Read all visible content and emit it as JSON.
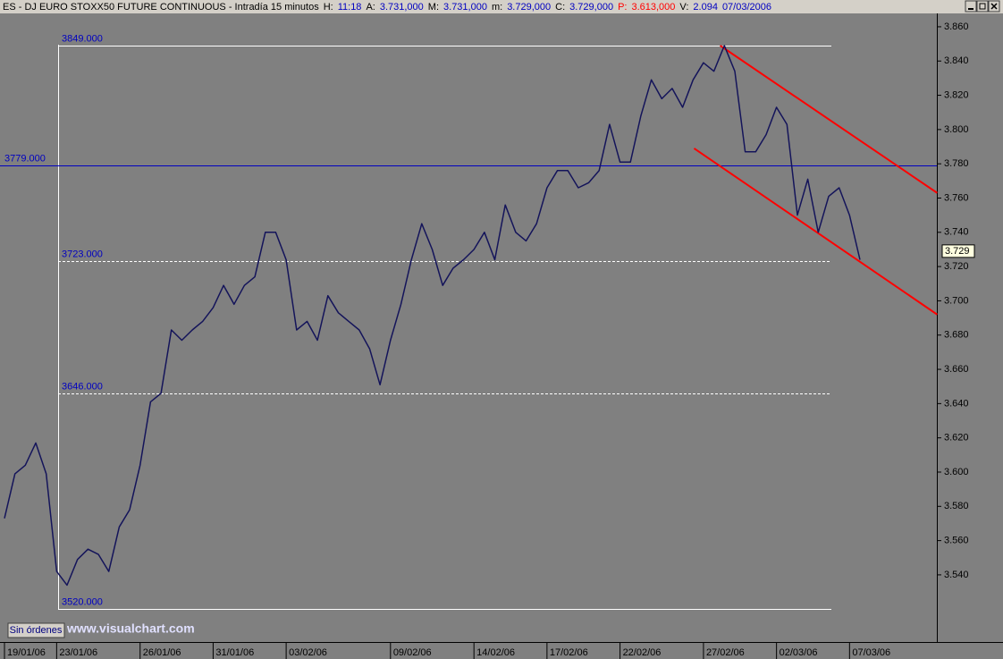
{
  "chart_data": {
    "type": "line",
    "header": [
      {
        "text": "ES - DJ EURO STOXX50 FUTURE CONTINUOUS - Intradía 15 minutos",
        "color": "#000000"
      },
      {
        "text": "H:",
        "color": "#000000"
      },
      {
        "text": "11:18",
        "color": "#0000c0"
      },
      {
        "text": "A:",
        "color": "#000000"
      },
      {
        "text": "3.731,000",
        "color": "#0000c0"
      },
      {
        "text": "M:",
        "color": "#000000"
      },
      {
        "text": "3.731,000",
        "color": "#0000c0"
      },
      {
        "text": "m:",
        "color": "#000000"
      },
      {
        "text": "3.729,000",
        "color": "#0000c0"
      },
      {
        "text": "C:",
        "color": "#000000"
      },
      {
        "text": "3.729,000",
        "color": "#0000c0"
      },
      {
        "text": "P:",
        "color": "#ff0000"
      },
      {
        "text": "3.613,000",
        "color": "#ff0000"
      },
      {
        "text": "V:",
        "color": "#000000"
      },
      {
        "text": "2.094",
        "color": "#0000c0"
      },
      {
        "text": "07/03/2006",
        "color": "#0000c0"
      }
    ],
    "categories": [
      "19/01/06",
      null,
      null,
      null,
      null,
      "23/01/06",
      null,
      null,
      null,
      null,
      null,
      null,
      null,
      "26/01/06",
      null,
      null,
      null,
      null,
      null,
      null,
      "31/01/06",
      null,
      null,
      null,
      null,
      null,
      null,
      "03/02/06",
      null,
      null,
      null,
      null,
      null,
      null,
      null,
      null,
      null,
      "09/02/06",
      null,
      null,
      null,
      null,
      null,
      null,
      null,
      "14/02/06",
      null,
      null,
      null,
      null,
      null,
      null,
      "17/02/06",
      null,
      null,
      null,
      null,
      null,
      null,
      "22/02/06",
      null,
      null,
      null,
      null,
      null,
      null,
      null,
      "27/02/06",
      null,
      null,
      null,
      null,
      null,
      null,
      "02/03/06",
      null,
      null,
      null,
      null,
      null,
      null,
      "07/03/06",
      null
    ],
    "series": [
      {
        "color": "#14145a",
        "values": [
          3.573,
          3.599,
          3.604,
          3.617,
          3.599,
          3.542,
          3.534,
          3.549,
          3.555,
          3.552,
          3.542,
          3.568,
          3.578,
          3.604,
          3.641,
          3.646,
          3.683,
          3.677,
          3.683,
          3.688,
          3.696,
          3.709,
          3.698,
          3.709,
          3.714,
          3.74,
          3.74,
          3.724,
          3.683,
          3.688,
          3.677,
          3.703,
          3.693,
          3.688,
          3.683,
          3.672,
          3.651,
          3.677,
          3.698,
          3.724,
          3.745,
          3.73,
          3.709,
          3.719,
          3.724,
          3.73,
          3.74,
          3.724,
          3.756,
          3.74,
          3.735,
          3.745,
          3.766,
          3.776,
          3.776,
          3.766,
          3.769,
          3.776,
          3.803,
          3.781,
          3.781,
          3.808,
          3.829,
          3.818,
          3.824,
          3.813,
          3.829,
          3.839,
          3.834,
          3.849,
          3.834,
          3.787,
          3.787,
          3.797,
          3.813,
          3.803,
          3.75,
          3.771,
          3.74,
          3.761,
          3.766,
          3.75,
          3.724
        ]
      }
    ],
    "ylim": [
      3.5008,
      3.8678
    ],
    "yticks": [
      {
        "value": 3.54,
        "label": "3.540"
      },
      {
        "value": 3.56,
        "label": "3.560"
      },
      {
        "value": 3.58,
        "label": "3.580"
      },
      {
        "value": 3.6,
        "label": "3.600"
      },
      {
        "value": 3.62,
        "label": "3.620"
      },
      {
        "value": 3.64,
        "label": "3.640"
      },
      {
        "value": 3.66,
        "label": "3.660"
      },
      {
        "value": 3.68,
        "label": "3.680"
      },
      {
        "value": 3.7,
        "label": "3.700"
      },
      {
        "value": 3.72,
        "label": "3.720"
      },
      {
        "value": 3.74,
        "label": "3.740"
      },
      {
        "value": 3.76,
        "label": "3.760"
      },
      {
        "value": 3.78,
        "label": "3.780"
      },
      {
        "value": 3.8,
        "label": "3.800"
      },
      {
        "value": 3.82,
        "label": "3.820"
      },
      {
        "value": 3.84,
        "label": "3.840"
      },
      {
        "value": 3.86,
        "label": "3.860"
      }
    ],
    "levels": [
      {
        "value": 3.849,
        "label": "3849.000",
        "color": "#ffffff",
        "style": "solid"
      },
      {
        "value": 3.779,
        "label": "3779.000",
        "color": "#0000c0",
        "style": "full"
      },
      {
        "value": 3.723,
        "label": "3723.000",
        "color": "#ffffff",
        "style": "dashed"
      },
      {
        "value": 3.646,
        "label": "3646.000",
        "color": "#ffffff",
        "style": "dashed"
      },
      {
        "value": 3.52,
        "label": "3520.000",
        "color": "#ffffff",
        "style": "solid"
      }
    ],
    "trendlines": [
      {
        "x": [
          68.6,
          89.4
        ],
        "y": [
          3.849,
          3.763
        ],
        "color": "#ff0000"
      },
      {
        "x": [
          66.1,
          89.4
        ],
        "y": [
          3.789,
          3.692
        ],
        "color": "#ff0000"
      }
    ],
    "last_price": {
      "value": 3.729,
      "label": "3.729"
    },
    "button": "Sin órdenes",
    "watermark": "www.visualchart.com"
  }
}
